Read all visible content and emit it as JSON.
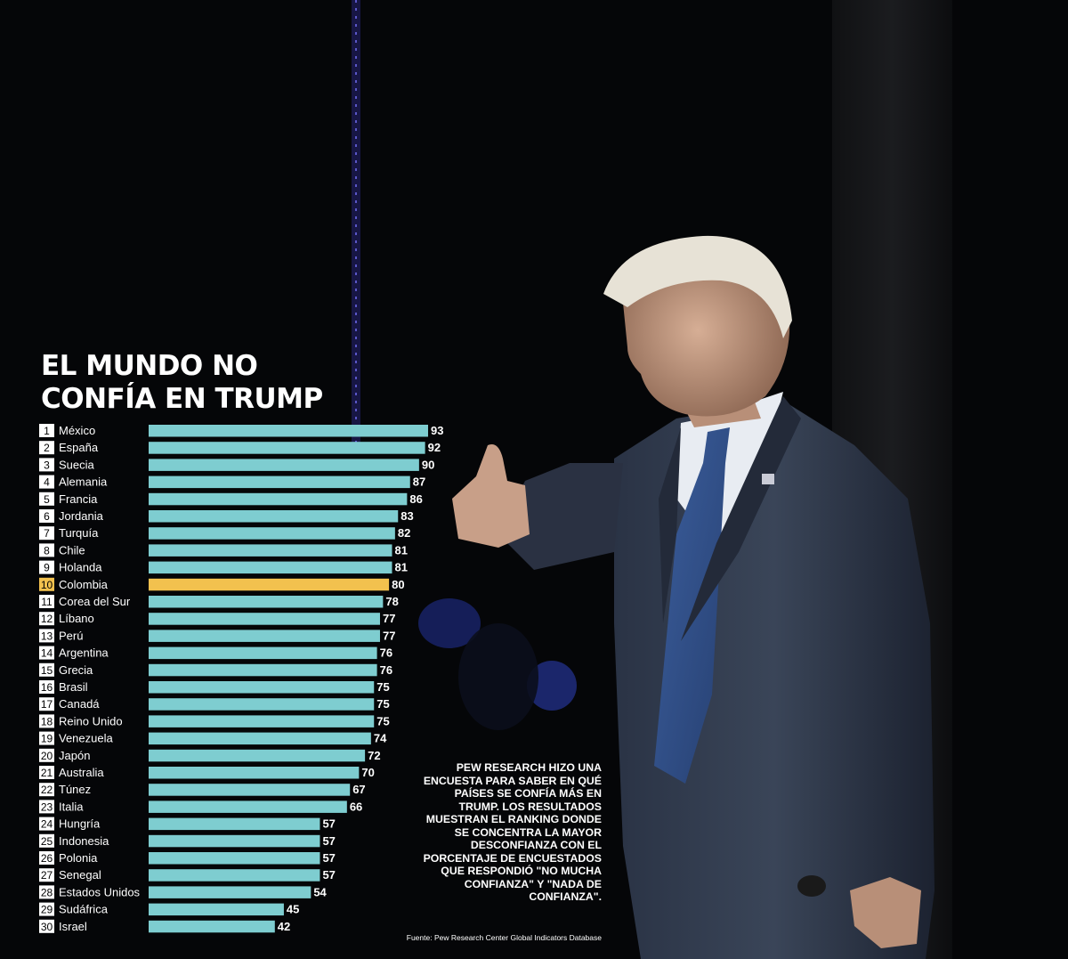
{
  "title": {
    "line1": "EL MUNDO NO",
    "line2": "CONFÍA EN TRUMP"
  },
  "description": "PEW RESEARCH HIZO UNA ENCUESTA PARA SABER EN QUÉ PAÍSES SE CONFÍA MÁS EN TRUMP. LOS RESULTADOS MUESTRAN EL RANKING DONDE SE CONCENTRA LA MAYOR DESCONFIANZA CON EL PORCENTAJE DE ENCUESTADOS QUE RESPONDIÓ \"NO MUCHA CONFIANZA\" Y \"NADA DE CONFIANZA\".",
  "source": "Fuente: Pew Research Center Global Indicators Database",
  "colors": {
    "bar": "#7ecdd0",
    "highlight_bar": "#f2c14e",
    "background": "#050608",
    "rank_box": "#ffffff",
    "rank_text": "#000000"
  },
  "chart_data": {
    "type": "bar",
    "orientation": "horizontal",
    "highlight": "Colombia",
    "xlim": [
      0,
      93
    ],
    "ranks": [
      "1",
      "2",
      "3",
      "4",
      "5",
      "6",
      "7",
      "8",
      "9",
      "10",
      "11",
      "12",
      "13",
      "14",
      "15",
      "16",
      "17",
      "18",
      "19",
      "20",
      "21",
      "22",
      "23",
      "24",
      "25",
      "26",
      "27",
      "28",
      "29",
      "30"
    ],
    "categories": [
      "México",
      "España",
      "Suecia",
      "Alemania",
      "Francia",
      "Jordania",
      "Turquía",
      "Chile",
      "Holanda",
      "Colombia",
      "Corea del Sur",
      "Líbano",
      "Perú",
      "Argentina",
      "Grecia",
      "Brasil",
      "Canadá",
      "Reino Unido",
      "Venezuela",
      "Japón",
      "Australia",
      "Túnez",
      "Italia",
      "Hungría",
      "Indonesia",
      "Polonia",
      "Senegal",
      "Estados Unidos",
      "Sudáfrica",
      "Israel"
    ],
    "values": [
      93,
      92,
      90,
      87,
      86,
      83,
      82,
      81,
      81,
      80,
      78,
      77,
      77,
      76,
      76,
      75,
      75,
      75,
      74,
      72,
      70,
      67,
      66,
      57,
      57,
      57,
      57,
      54,
      45,
      42
    ]
  }
}
